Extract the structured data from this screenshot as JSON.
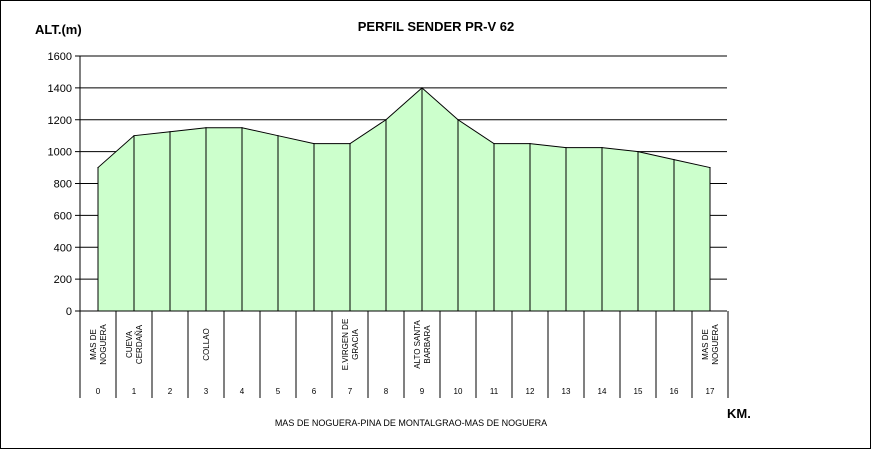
{
  "chart_data": {
    "type": "area",
    "title": "PERFIL SENDER PR-V 62",
    "ylabel": "ALT.(m)",
    "xlabel": "KM.",
    "subtitle": "MAS DE NOGUERA-PINA DE MONTALGRAO-MAS DE NOGUERA",
    "ylim": [
      0,
      1600
    ],
    "yticks": [
      "0",
      "200",
      "400",
      "600",
      "800",
      "1000",
      "1200",
      "1400",
      "1600"
    ],
    "grid": true,
    "fill_color": "#ccffcc",
    "km": [
      "0",
      "1",
      "2",
      "3",
      "4",
      "5",
      "6",
      "7",
      "8",
      "9",
      "10",
      "11",
      "12",
      "13",
      "14",
      "15",
      "16",
      "17"
    ],
    "x": [
      0,
      1,
      2,
      3,
      4,
      5,
      6,
      7,
      8,
      9,
      10,
      11,
      12,
      13,
      14,
      15,
      16,
      17
    ],
    "values": [
      900,
      1100,
      1125,
      1150,
      1150,
      1100,
      1050,
      1050,
      1200,
      1400,
      1200,
      1050,
      1050,
      1025,
      1025,
      1000,
      950,
      900
    ],
    "places": [
      {
        "km": 0,
        "lines": [
          "MAS DE",
          "NOGUERA"
        ]
      },
      {
        "km": 1,
        "lines": [
          "CUEVA",
          "CERDAÑA"
        ]
      },
      {
        "km": 3,
        "lines": [
          "COLLAO"
        ]
      },
      {
        "km": 7,
        "lines": [
          "E.VIRGEN DE",
          "GRACIA"
        ]
      },
      {
        "km": 9,
        "lines": [
          "ALTO SANTA",
          "BARBARA"
        ]
      },
      {
        "km": 17,
        "lines": [
          "MAS DE",
          "NOGUERA"
        ]
      }
    ]
  }
}
